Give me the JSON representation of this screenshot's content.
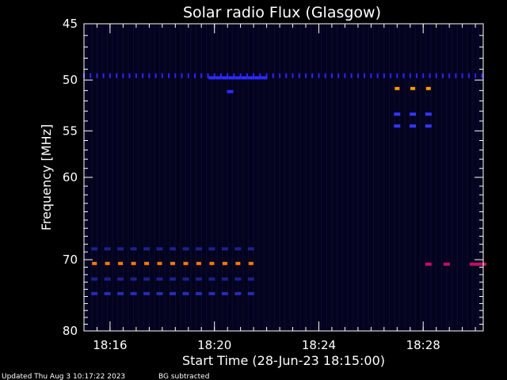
{
  "chart_data": {
    "type": "heatmap",
    "title": "Solar radio Flux (Glasgow)",
    "xlabel": "Start Time (28-Jun-23 18:15:00)",
    "ylabel": "Frequency [MHz]",
    "x_unit": "minutes after 18:15:00",
    "xlim": [
      0,
      15.3
    ],
    "ylim": [
      45,
      80
    ],
    "y_scale": "log",
    "y_inverted": true,
    "x_ticks": [
      {
        "value": 1,
        "label": "18:16"
      },
      {
        "value": 5,
        "label": "18:20"
      },
      {
        "value": 9,
        "label": "18:24"
      },
      {
        "value": 13,
        "label": "18:28"
      }
    ],
    "x_minor_step": 0.5,
    "y_ticks": [
      {
        "value": 45,
        "label": "45"
      },
      {
        "value": 50,
        "label": "50"
      },
      {
        "value": 55,
        "label": "55"
      },
      {
        "value": 60,
        "label": "60"
      },
      {
        "value": 70,
        "label": "70"
      },
      {
        "value": 80,
        "label": "80"
      }
    ],
    "y_minor": [
      46,
      47,
      48,
      49,
      51,
      52,
      53,
      54,
      56,
      57,
      58,
      59,
      61,
      62,
      63,
      64,
      65,
      66,
      67,
      68,
      69,
      71,
      72,
      73,
      74,
      75,
      76,
      77,
      78,
      79
    ],
    "background_color": "#03031e",
    "column_stripe_color": "#0c0c3a",
    "column_stripe_step": 0.2,
    "grid": false,
    "features": [
      {
        "freq": 49.6,
        "x_start": 0,
        "x_end": 15.3,
        "style": "tick",
        "color": "#3320ff",
        "spacing": 0.25
      },
      {
        "freq": 49.8,
        "x_start": 4.9,
        "x_end": 6.9,
        "style": "dash",
        "color": "#2b2bff",
        "spacing": 0.25
      },
      {
        "freq": 51.1,
        "x_start": 5.6,
        "x_end": 5.7,
        "style": "dash",
        "color": "#2b2bff",
        "spacing": 0.2
      },
      {
        "freq": 50.8,
        "x_start": 12,
        "x_end": 13.2,
        "style": "dash",
        "color": "#ff9900",
        "spacing": 0.6
      },
      {
        "freq": 53.3,
        "x_start": 12,
        "x_end": 13.2,
        "style": "dash",
        "color": "#3535ff",
        "spacing": 0.6
      },
      {
        "freq": 54.5,
        "x_start": 12,
        "x_end": 13.2,
        "style": "dash",
        "color": "#3535ff",
        "spacing": 0.6
      },
      {
        "freq": 68.6,
        "x_start": 0.4,
        "x_end": 6.6,
        "style": "dash",
        "color": "#20208c",
        "spacing": 0.5
      },
      {
        "freq": 70.5,
        "x_start": 0.4,
        "x_end": 6.6,
        "style": "dash",
        "color": "#ff7a00",
        "spacing": 0.5
      },
      {
        "freq": 70.6,
        "x_start": 14.9,
        "x_end": 15.3,
        "style": "dash",
        "color": "#c01060",
        "spacing": 0.2
      },
      {
        "freq": 70.6,
        "x_start": 13.2,
        "x_end": 13.3,
        "style": "dash",
        "color": "#c01060",
        "spacing": 0.2
      },
      {
        "freq": 70.6,
        "x_start": 13.9,
        "x_end": 14.0,
        "style": "dash",
        "color": "#c01060",
        "spacing": 0.2
      },
      {
        "freq": 72.6,
        "x_start": 0.4,
        "x_end": 6.6,
        "style": "dash",
        "color": "#20208c",
        "spacing": 0.5
      },
      {
        "freq": 74.6,
        "x_start": 0.4,
        "x_end": 6.6,
        "style": "dash",
        "color": "#2a2ab5",
        "spacing": 0.5
      }
    ]
  },
  "footer": {
    "updated": "Updated Thu Aug  3 10:17:22 2023",
    "bg_note": "BG subtracted"
  }
}
